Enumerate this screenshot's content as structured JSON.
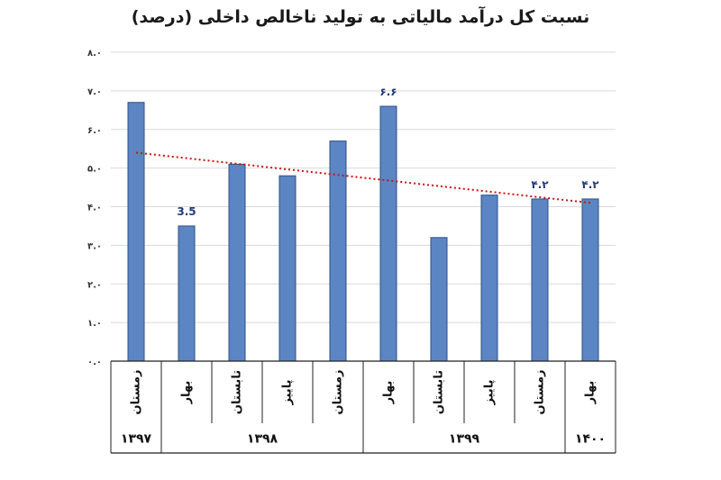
{
  "chart_data": {
    "type": "bar",
    "title": "نسبت کل درآمد مالیاتی به تولید ناخالص داخلی (درصد)",
    "ylim": [
      0,
      8
    ],
    "yticks": [
      "۰.۰",
      "۱.۰",
      "۲.۰",
      "۳.۰",
      "۴.۰",
      "۵.۰",
      "۶.۰",
      "۷.۰",
      "۸.۰"
    ],
    "grid": true,
    "categories": [
      "زمستان",
      "بهار",
      "تابستان",
      "پاییز",
      "زمستان",
      "بهار",
      "تابستان",
      "پاییز",
      "زمستان",
      "بهار"
    ],
    "values": [
      6.7,
      3.5,
      5.1,
      4.8,
      5.7,
      6.6,
      3.2,
      4.3,
      4.2,
      4.2
    ],
    "data_labels": [
      "",
      "3.5",
      "",
      "",
      "",
      "۶.۶",
      "",
      "",
      "۴.۲",
      "۴.۲"
    ],
    "year_groups": [
      {
        "label": "۱۳۹۷",
        "span": 1
      },
      {
        "label": "۱۳۹۸",
        "span": 4
      },
      {
        "label": "۱۳۹۹",
        "span": 4
      },
      {
        "label": "۱۴۰۰",
        "span": 1
      }
    ],
    "trendline": {
      "style": "dotted",
      "start": 5.4,
      "end": 4.1
    },
    "colors": {
      "bar": "#5b86c3",
      "bar_stroke": "#2d4f86",
      "trend": "#cc1111",
      "grid": "#d9d9d9",
      "data_label": "#1f3a78"
    }
  }
}
